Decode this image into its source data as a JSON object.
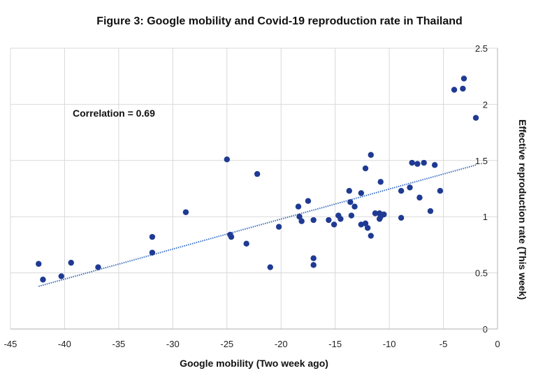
{
  "chart_data": {
    "type": "scatter",
    "title": "Figure 3: Google mobility and Covid-19 reproduction rate in Thailand",
    "xlabel": "Google mobility (Two week ago)",
    "ylabel": "Effective reproduction rate (This week)",
    "xlim": [
      -45,
      0
    ],
    "ylim": [
      0,
      2.5
    ],
    "xticks": [
      "-45",
      "-40",
      "-35",
      "-30",
      "-25",
      "-20",
      "-15",
      "-10",
      "-5",
      "0"
    ],
    "yticks": [
      "0",
      "0.5",
      "1",
      "1.5",
      "2",
      "2.5"
    ],
    "y_axis_side": "right",
    "grid": true,
    "annotation": "Correlation = 0.69",
    "colors": {
      "points": "#1f3a93",
      "trendline": "#3a6fc4",
      "grid": "#d9d9d9"
    },
    "trendline": {
      "style": "dotted linear",
      "x": [
        -42.4,
        -2.0
      ],
      "y": [
        0.38,
        1.46
      ]
    },
    "points": [
      [
        -42.4,
        0.58
      ],
      [
        -42.0,
        0.44
      ],
      [
        -40.3,
        0.47
      ],
      [
        -39.4,
        0.59
      ],
      [
        -36.9,
        0.55
      ],
      [
        -31.9,
        0.82
      ],
      [
        -31.9,
        0.68
      ],
      [
        -28.8,
        1.04
      ],
      [
        -25.0,
        1.51
      ],
      [
        -24.7,
        0.84
      ],
      [
        -24.6,
        0.82
      ],
      [
        -23.2,
        0.76
      ],
      [
        -22.2,
        1.38
      ],
      [
        -21.0,
        0.55
      ],
      [
        -20.2,
        0.91
      ],
      [
        -18.4,
        1.09
      ],
      [
        -18.3,
        1.0
      ],
      [
        -18.1,
        0.96
      ],
      [
        -17.5,
        1.14
      ],
      [
        -17.0,
        0.97
      ],
      [
        -17.0,
        0.63
      ],
      [
        -17.0,
        0.57
      ],
      [
        -15.6,
        0.97
      ],
      [
        -15.1,
        0.93
      ],
      [
        -14.7,
        1.01
      ],
      [
        -14.5,
        0.98
      ],
      [
        -13.7,
        1.23
      ],
      [
        -13.6,
        1.13
      ],
      [
        -13.5,
        1.01
      ],
      [
        -13.2,
        1.09
      ],
      [
        -12.6,
        1.21
      ],
      [
        -12.6,
        0.93
      ],
      [
        -12.2,
        0.94
      ],
      [
        -12.0,
        0.9
      ],
      [
        -12.2,
        1.43
      ],
      [
        -11.7,
        1.55
      ],
      [
        -11.7,
        0.83
      ],
      [
        -11.3,
        1.03
      ],
      [
        -10.9,
        1.03
      ],
      [
        -10.9,
        0.98
      ],
      [
        -10.8,
        1.31
      ],
      [
        -10.5,
        1.02
      ],
      [
        -10.8,
        1.0
      ],
      [
        -8.9,
        1.23
      ],
      [
        -8.9,
        0.99
      ],
      [
        -8.1,
        1.26
      ],
      [
        -7.9,
        1.48
      ],
      [
        -7.4,
        1.47
      ],
      [
        -7.2,
        1.17
      ],
      [
        -6.8,
        1.48
      ],
      [
        -6.2,
        1.05
      ],
      [
        -5.8,
        1.46
      ],
      [
        -5.3,
        1.23
      ],
      [
        -4.0,
        2.13
      ],
      [
        -3.2,
        2.14
      ],
      [
        -3.1,
        2.23
      ],
      [
        -2.0,
        1.88
      ]
    ]
  }
}
